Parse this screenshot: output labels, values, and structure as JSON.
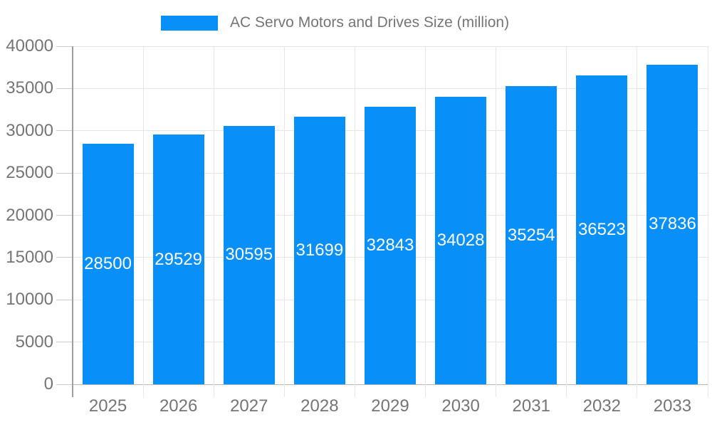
{
  "legend": {
    "label": "AC Servo Motors and Drives Size (million)"
  },
  "colors": {
    "bar": "#0890f8",
    "gridline": "#e6e6e6",
    "baseline": "#b7b7b7",
    "axis_line": "#9e9e9e",
    "tick": "#cccccc",
    "axis_text": "#757575",
    "bar_label": "#ffffff"
  },
  "chart_data": {
    "type": "bar",
    "title": "AC Servo Motors and Drives Size (million)",
    "categories": [
      "2025",
      "2026",
      "2027",
      "2028",
      "2029",
      "2030",
      "2031",
      "2032",
      "2033"
    ],
    "values": [
      28500,
      29529,
      30595,
      31699,
      32843,
      34028,
      35254,
      36523,
      37836
    ],
    "xlabel": "",
    "ylabel": "",
    "ylim": [
      0,
      40000
    ],
    "ytick_step": 5000,
    "yticks": [
      "0",
      "5000",
      "10000",
      "15000",
      "20000",
      "25000",
      "30000",
      "35000",
      "40000"
    ],
    "grid": true,
    "legend_position": "top",
    "bar_labels_shown": true
  }
}
